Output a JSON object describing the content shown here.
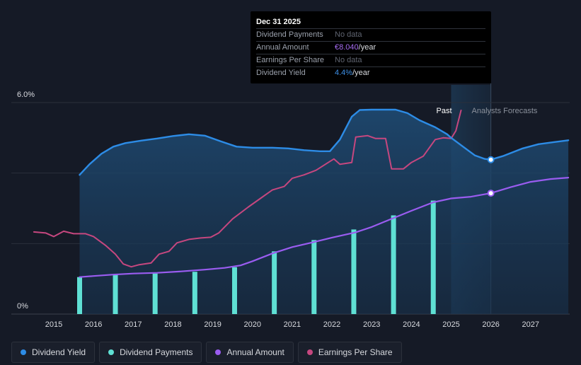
{
  "chart_data": {
    "type": "line",
    "y_axis_labels": [
      "6.0%",
      "0%"
    ],
    "x_ticks": [
      "2015",
      "2016",
      "2017",
      "2018",
      "2019",
      "2020",
      "2021",
      "2022",
      "2023",
      "2024",
      "2025",
      "2026",
      "2027"
    ],
    "x_range": [
      2014.3,
      2028.0
    ],
    "y_range": [
      0,
      6.0
    ],
    "past_label": "Past",
    "forecast_label": "Analysts Forecasts",
    "forecast_start": 2025.0,
    "tooltip_x": 2026.0,
    "series": [
      {
        "name": "Dividend Yield",
        "color": "#2d8ce6",
        "unit": "%",
        "points": [
          [
            2015.65,
            3.95
          ],
          [
            2015.9,
            4.25
          ],
          [
            2016.2,
            4.55
          ],
          [
            2016.5,
            4.75
          ],
          [
            2016.8,
            4.85
          ],
          [
            2017.2,
            4.92
          ],
          [
            2017.6,
            4.98
          ],
          [
            2018.0,
            5.05
          ],
          [
            2018.4,
            5.1
          ],
          [
            2018.8,
            5.06
          ],
          [
            2019.2,
            4.9
          ],
          [
            2019.6,
            4.75
          ],
          [
            2020.0,
            4.72
          ],
          [
            2020.5,
            4.72
          ],
          [
            2020.9,
            4.7
          ],
          [
            2021.3,
            4.65
          ],
          [
            2021.7,
            4.62
          ],
          [
            2021.95,
            4.62
          ],
          [
            2022.2,
            4.95
          ],
          [
            2022.5,
            5.6
          ],
          [
            2022.7,
            5.79
          ],
          [
            2023.0,
            5.8
          ],
          [
            2023.6,
            5.8
          ],
          [
            2023.9,
            5.7
          ],
          [
            2024.2,
            5.5
          ],
          [
            2024.6,
            5.3
          ],
          [
            2024.9,
            5.1
          ],
          [
            2025.0,
            5.0
          ],
          [
            2025.3,
            4.75
          ],
          [
            2025.6,
            4.5
          ],
          [
            2025.85,
            4.4
          ],
          [
            2026.0,
            4.38
          ],
          [
            2026.3,
            4.48
          ],
          [
            2026.8,
            4.7
          ],
          [
            2027.2,
            4.82
          ],
          [
            2027.6,
            4.88
          ],
          [
            2027.95,
            4.93
          ]
        ]
      },
      {
        "name": "Dividend Payments",
        "color": "#5fe0d4",
        "unit": "%",
        "bars": [
          [
            2015.65,
            1.05
          ],
          [
            2016.55,
            1.12
          ],
          [
            2017.55,
            1.15
          ],
          [
            2018.55,
            1.2
          ],
          [
            2019.55,
            1.33
          ],
          [
            2020.55,
            1.78
          ],
          [
            2021.55,
            2.1
          ],
          [
            2022.55,
            2.4
          ],
          [
            2023.55,
            2.8
          ],
          [
            2024.55,
            3.22
          ]
        ]
      },
      {
        "name": "Annual Amount",
        "color": "#9a5cf0",
        "unit": "%",
        "points": [
          [
            2015.65,
            1.05
          ],
          [
            2016.0,
            1.08
          ],
          [
            2016.5,
            1.12
          ],
          [
            2017.0,
            1.15
          ],
          [
            2017.6,
            1.17
          ],
          [
            2018.2,
            1.21
          ],
          [
            2018.8,
            1.26
          ],
          [
            2019.3,
            1.31
          ],
          [
            2019.7,
            1.38
          ],
          [
            2020.0,
            1.5
          ],
          [
            2020.5,
            1.72
          ],
          [
            2021.0,
            1.9
          ],
          [
            2021.5,
            2.03
          ],
          [
            2022.0,
            2.17
          ],
          [
            2022.6,
            2.32
          ],
          [
            2023.0,
            2.47
          ],
          [
            2023.5,
            2.7
          ],
          [
            2024.0,
            2.93
          ],
          [
            2024.55,
            3.17
          ],
          [
            2025.0,
            3.28
          ],
          [
            2025.5,
            3.33
          ],
          [
            2026.0,
            3.43
          ],
          [
            2026.5,
            3.6
          ],
          [
            2027.0,
            3.75
          ],
          [
            2027.5,
            3.83
          ],
          [
            2027.95,
            3.87
          ]
        ]
      },
      {
        "name": "Earnings Per Share",
        "color": "#c6477f",
        "unit": "%",
        "points": [
          [
            2014.5,
            2.33
          ],
          [
            2014.8,
            2.3
          ],
          [
            2015.0,
            2.2
          ],
          [
            2015.25,
            2.35
          ],
          [
            2015.5,
            2.28
          ],
          [
            2015.8,
            2.28
          ],
          [
            2016.0,
            2.2
          ],
          [
            2016.3,
            1.95
          ],
          [
            2016.55,
            1.7
          ],
          [
            2016.75,
            1.42
          ],
          [
            2016.95,
            1.34
          ],
          [
            2017.15,
            1.4
          ],
          [
            2017.45,
            1.45
          ],
          [
            2017.65,
            1.7
          ],
          [
            2017.9,
            1.78
          ],
          [
            2018.1,
            2.02
          ],
          [
            2018.4,
            2.12
          ],
          [
            2018.7,
            2.16
          ],
          [
            2018.95,
            2.18
          ],
          [
            2019.15,
            2.3
          ],
          [
            2019.5,
            2.7
          ],
          [
            2019.9,
            3.04
          ],
          [
            2020.2,
            3.28
          ],
          [
            2020.5,
            3.52
          ],
          [
            2020.8,
            3.62
          ],
          [
            2021.0,
            3.85
          ],
          [
            2021.3,
            3.95
          ],
          [
            2021.6,
            4.08
          ],
          [
            2021.95,
            4.33
          ],
          [
            2022.05,
            4.4
          ],
          [
            2022.2,
            4.25
          ],
          [
            2022.5,
            4.3
          ],
          [
            2022.6,
            5.02
          ],
          [
            2022.9,
            5.06
          ],
          [
            2023.1,
            4.98
          ],
          [
            2023.35,
            4.98
          ],
          [
            2023.5,
            4.12
          ],
          [
            2023.8,
            4.12
          ],
          [
            2024.0,
            4.3
          ],
          [
            2024.3,
            4.48
          ],
          [
            2024.6,
            4.95
          ],
          [
            2024.8,
            5.0
          ],
          [
            2025.0,
            4.98
          ],
          [
            2025.12,
            5.2
          ],
          [
            2025.25,
            5.78
          ]
        ]
      }
    ],
    "tooltip": {
      "title": "Dec 31 2025",
      "rows": [
        {
          "label": "Dividend Payments",
          "value": "No data",
          "suffix": ""
        },
        {
          "label": "Annual Amount",
          "value": "€8.040",
          "suffix": "/year"
        },
        {
          "label": "Earnings Per Share",
          "value": "No data",
          "suffix": ""
        },
        {
          "label": "Dividend Yield",
          "value": "4.4%",
          "suffix": "/year"
        }
      ]
    },
    "legend": [
      {
        "label": "Dividend Yield",
        "color": "#2d8ce6"
      },
      {
        "label": "Dividend Payments",
        "color": "#5fe0d4"
      },
      {
        "label": "Annual Amount",
        "color": "#9a5cf0"
      },
      {
        "label": "Earnings Per Share",
        "color": "#c6477f"
      }
    ]
  }
}
